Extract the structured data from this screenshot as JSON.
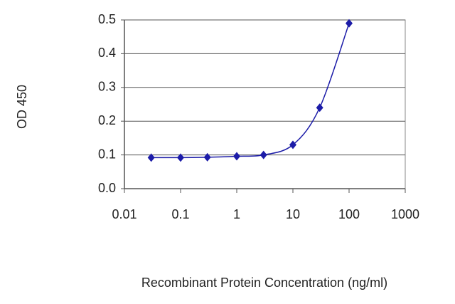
{
  "chart_data": {
    "type": "line",
    "x_label": "Recombinant Protein Concentration (ng/ml)",
    "y_label": "OD 450",
    "x": [
      0.03,
      0.1,
      0.3,
      1,
      3,
      10,
      30,
      100
    ],
    "series": [
      {
        "color": "#1c1ca8",
        "values": [
          0.092,
          0.092,
          0.093,
          0.096,
          0.1,
          0.13,
          0.24,
          0.49
        ]
      }
    ],
    "xlim": [
      0.01,
      1000
    ],
    "xticks": [
      0.01,
      0.1,
      1,
      10,
      100,
      1000
    ],
    "log_x": true,
    "ylim": [
      0,
      0.5
    ],
    "yticks": [
      {
        "value": 0,
        "label": "0.0"
      },
      0.1,
      0.2,
      0.3,
      0.4,
      0.5
    ],
    "grid": true
  }
}
